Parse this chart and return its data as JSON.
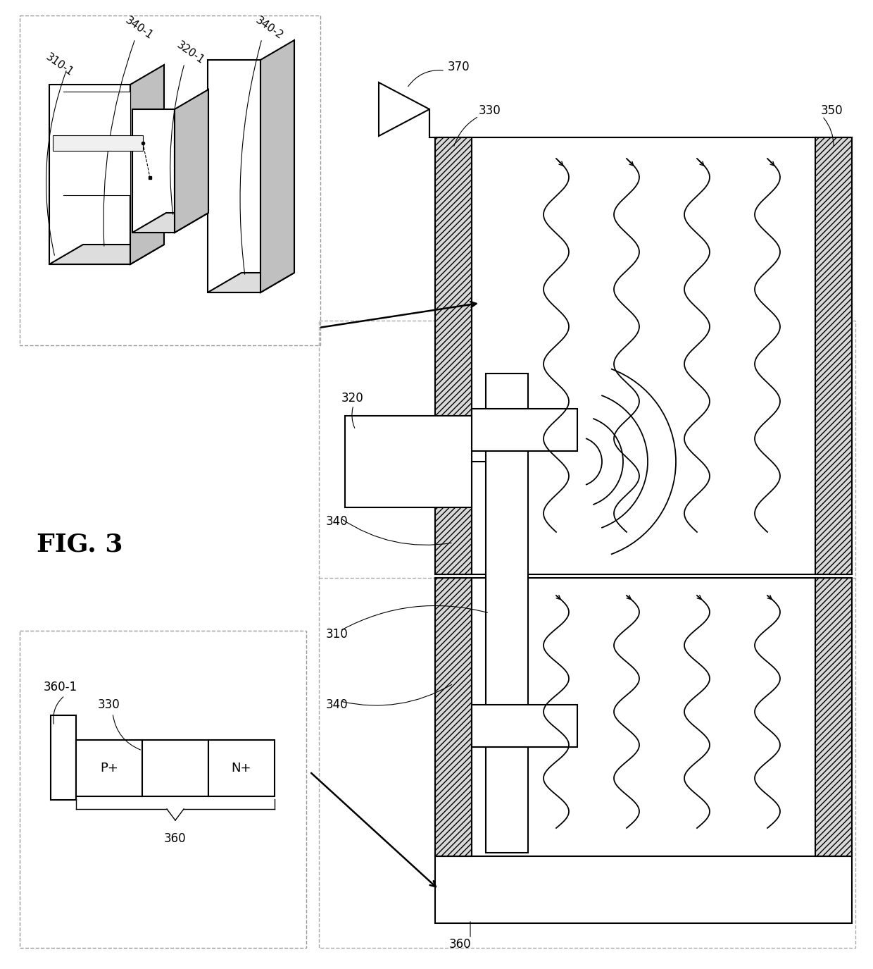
{
  "bg_color": "#ffffff",
  "fig_label": "FIG. 3",
  "labels": {
    "310_1": "310-1",
    "320_1": "320-1",
    "340_1": "340-1",
    "340_2": "340-2",
    "310": "310",
    "320": "320",
    "330": "330",
    "340": "340",
    "350": "350",
    "360": "360",
    "360_1": "360-1",
    "370": "370"
  },
  "lw": 1.5,
  "lw_thin": 1.0,
  "hatch_color": "#aaaaaa",
  "box_color": "#cccccc"
}
